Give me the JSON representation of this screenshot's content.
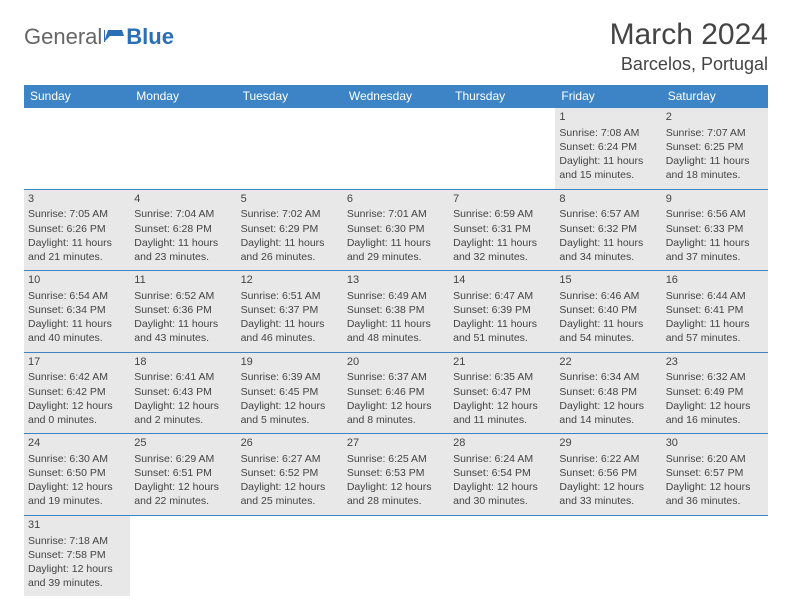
{
  "brand": {
    "general": "General",
    "blue": "Blue"
  },
  "title": "March 2024",
  "location": "Barcelos, Portugal",
  "colors": {
    "header_bg": "#3c84c6",
    "header_text": "#ffffff",
    "cell_bg": "#e8e8e8",
    "border": "#3c84c6",
    "text": "#444444",
    "logo_blue": "#2a6fb5"
  },
  "typography": {
    "title_fontsize": 30,
    "location_fontsize": 18,
    "weekday_fontsize": 12,
    "cell_fontsize": 10.5
  },
  "weekdays": [
    "Sunday",
    "Monday",
    "Tuesday",
    "Wednesday",
    "Thursday",
    "Friday",
    "Saturday"
  ],
  "weeks": [
    [
      null,
      null,
      null,
      null,
      null,
      {
        "day": "1",
        "sunrise": "7:08 AM",
        "sunset": "6:24 PM",
        "daylight1": "Daylight: 11 hours",
        "daylight2": "and 15 minutes."
      },
      {
        "day": "2",
        "sunrise": "7:07 AM",
        "sunset": "6:25 PM",
        "daylight1": "Daylight: 11 hours",
        "daylight2": "and 18 minutes."
      }
    ],
    [
      {
        "day": "3",
        "sunrise": "7:05 AM",
        "sunset": "6:26 PM",
        "daylight1": "Daylight: 11 hours",
        "daylight2": "and 21 minutes."
      },
      {
        "day": "4",
        "sunrise": "7:04 AM",
        "sunset": "6:28 PM",
        "daylight1": "Daylight: 11 hours",
        "daylight2": "and 23 minutes."
      },
      {
        "day": "5",
        "sunrise": "7:02 AM",
        "sunset": "6:29 PM",
        "daylight1": "Daylight: 11 hours",
        "daylight2": "and 26 minutes."
      },
      {
        "day": "6",
        "sunrise": "7:01 AM",
        "sunset": "6:30 PM",
        "daylight1": "Daylight: 11 hours",
        "daylight2": "and 29 minutes."
      },
      {
        "day": "7",
        "sunrise": "6:59 AM",
        "sunset": "6:31 PM",
        "daylight1": "Daylight: 11 hours",
        "daylight2": "and 32 minutes."
      },
      {
        "day": "8",
        "sunrise": "6:57 AM",
        "sunset": "6:32 PM",
        "daylight1": "Daylight: 11 hours",
        "daylight2": "and 34 minutes."
      },
      {
        "day": "9",
        "sunrise": "6:56 AM",
        "sunset": "6:33 PM",
        "daylight1": "Daylight: 11 hours",
        "daylight2": "and 37 minutes."
      }
    ],
    [
      {
        "day": "10",
        "sunrise": "6:54 AM",
        "sunset": "6:34 PM",
        "daylight1": "Daylight: 11 hours",
        "daylight2": "and 40 minutes."
      },
      {
        "day": "11",
        "sunrise": "6:52 AM",
        "sunset": "6:36 PM",
        "daylight1": "Daylight: 11 hours",
        "daylight2": "and 43 minutes."
      },
      {
        "day": "12",
        "sunrise": "6:51 AM",
        "sunset": "6:37 PM",
        "daylight1": "Daylight: 11 hours",
        "daylight2": "and 46 minutes."
      },
      {
        "day": "13",
        "sunrise": "6:49 AM",
        "sunset": "6:38 PM",
        "daylight1": "Daylight: 11 hours",
        "daylight2": "and 48 minutes."
      },
      {
        "day": "14",
        "sunrise": "6:47 AM",
        "sunset": "6:39 PM",
        "daylight1": "Daylight: 11 hours",
        "daylight2": "and 51 minutes."
      },
      {
        "day": "15",
        "sunrise": "6:46 AM",
        "sunset": "6:40 PM",
        "daylight1": "Daylight: 11 hours",
        "daylight2": "and 54 minutes."
      },
      {
        "day": "16",
        "sunrise": "6:44 AM",
        "sunset": "6:41 PM",
        "daylight1": "Daylight: 11 hours",
        "daylight2": "and 57 minutes."
      }
    ],
    [
      {
        "day": "17",
        "sunrise": "6:42 AM",
        "sunset": "6:42 PM",
        "daylight1": "Daylight: 12 hours",
        "daylight2": "and 0 minutes."
      },
      {
        "day": "18",
        "sunrise": "6:41 AM",
        "sunset": "6:43 PM",
        "daylight1": "Daylight: 12 hours",
        "daylight2": "and 2 minutes."
      },
      {
        "day": "19",
        "sunrise": "6:39 AM",
        "sunset": "6:45 PM",
        "daylight1": "Daylight: 12 hours",
        "daylight2": "and 5 minutes."
      },
      {
        "day": "20",
        "sunrise": "6:37 AM",
        "sunset": "6:46 PM",
        "daylight1": "Daylight: 12 hours",
        "daylight2": "and 8 minutes."
      },
      {
        "day": "21",
        "sunrise": "6:35 AM",
        "sunset": "6:47 PM",
        "daylight1": "Daylight: 12 hours",
        "daylight2": "and 11 minutes."
      },
      {
        "day": "22",
        "sunrise": "6:34 AM",
        "sunset": "6:48 PM",
        "daylight1": "Daylight: 12 hours",
        "daylight2": "and 14 minutes."
      },
      {
        "day": "23",
        "sunrise": "6:32 AM",
        "sunset": "6:49 PM",
        "daylight1": "Daylight: 12 hours",
        "daylight2": "and 16 minutes."
      }
    ],
    [
      {
        "day": "24",
        "sunrise": "6:30 AM",
        "sunset": "6:50 PM",
        "daylight1": "Daylight: 12 hours",
        "daylight2": "and 19 minutes."
      },
      {
        "day": "25",
        "sunrise": "6:29 AM",
        "sunset": "6:51 PM",
        "daylight1": "Daylight: 12 hours",
        "daylight2": "and 22 minutes."
      },
      {
        "day": "26",
        "sunrise": "6:27 AM",
        "sunset": "6:52 PM",
        "daylight1": "Daylight: 12 hours",
        "daylight2": "and 25 minutes."
      },
      {
        "day": "27",
        "sunrise": "6:25 AM",
        "sunset": "6:53 PM",
        "daylight1": "Daylight: 12 hours",
        "daylight2": "and 28 minutes."
      },
      {
        "day": "28",
        "sunrise": "6:24 AM",
        "sunset": "6:54 PM",
        "daylight1": "Daylight: 12 hours",
        "daylight2": "and 30 minutes."
      },
      {
        "day": "29",
        "sunrise": "6:22 AM",
        "sunset": "6:56 PM",
        "daylight1": "Daylight: 12 hours",
        "daylight2": "and 33 minutes."
      },
      {
        "day": "30",
        "sunrise": "6:20 AM",
        "sunset": "6:57 PM",
        "daylight1": "Daylight: 12 hours",
        "daylight2": "and 36 minutes."
      }
    ],
    [
      {
        "day": "31",
        "sunrise": "7:18 AM",
        "sunset": "7:58 PM",
        "daylight1": "Daylight: 12 hours",
        "daylight2": "and 39 minutes."
      },
      null,
      null,
      null,
      null,
      null,
      null
    ]
  ]
}
